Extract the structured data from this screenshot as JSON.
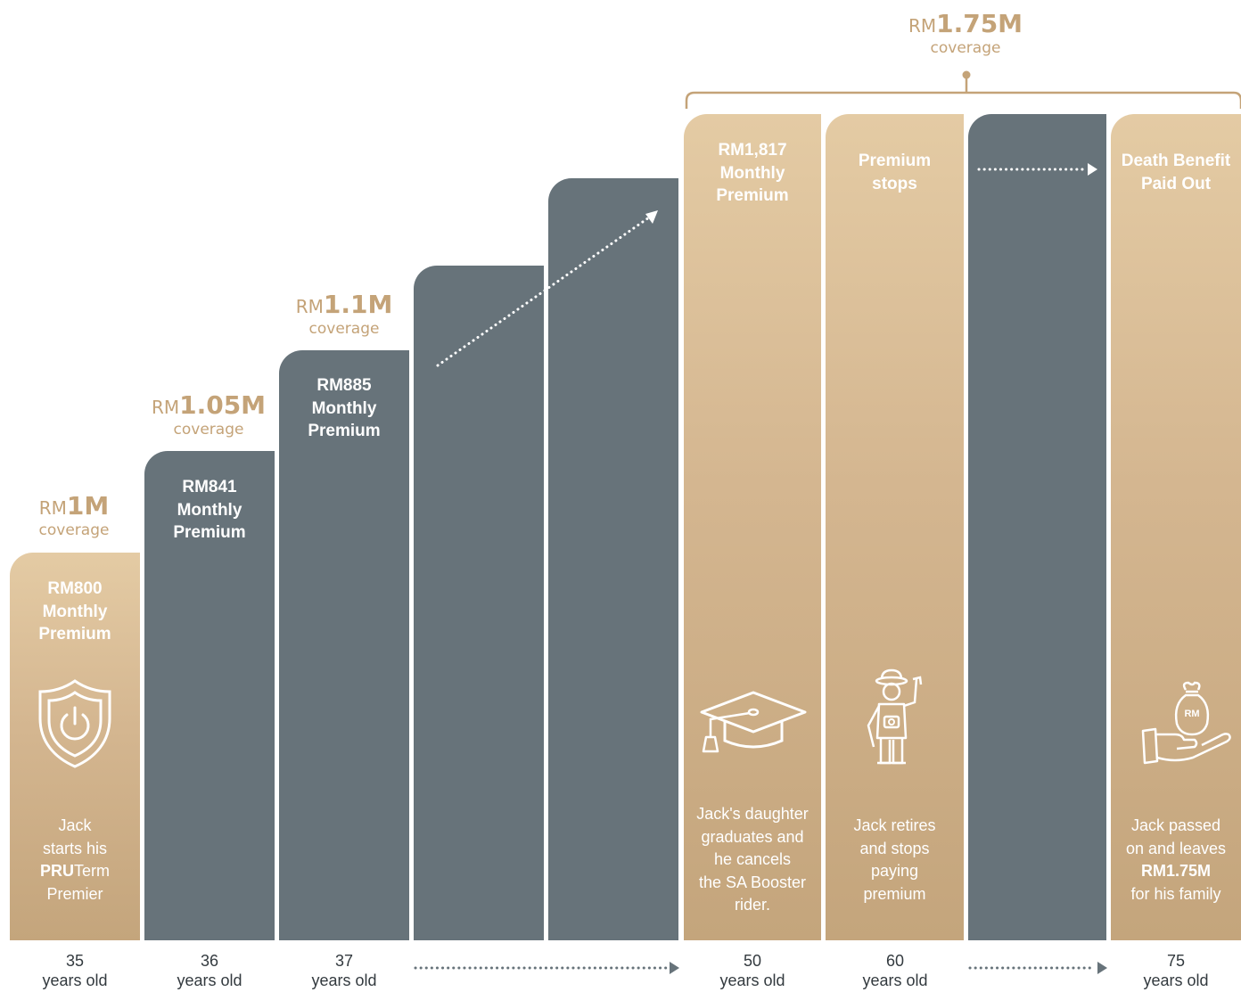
{
  "colors": {
    "gold": "#d4b690",
    "grey": "#67737a",
    "gold_text": "#c4a378",
    "age_text": "#333a3f"
  },
  "coverage": [
    {
      "currency": "RM",
      "amount": "1M",
      "label": "coverage"
    },
    {
      "currency": "RM",
      "amount": "1.05M",
      "label": "coverage"
    },
    {
      "currency": "RM",
      "amount": "1.1M",
      "label": "coverage"
    },
    {
      "currency": "RM",
      "amount": "1.75M",
      "label": "coverage"
    }
  ],
  "bars": [
    {
      "title": [
        "RM800",
        "Monthly",
        "Premium"
      ],
      "desc": [
        "Jack",
        "starts his"
      ],
      "desc_brand_bold": "PRU",
      "desc_brand_rest": "Term",
      "desc_last": "Premier",
      "icon": "shield-power-icon"
    },
    {
      "title": [
        "RM841",
        "Monthly",
        "Premium"
      ]
    },
    {
      "title": [
        "RM885",
        "Monthly",
        "Premium"
      ]
    },
    {},
    {},
    {
      "title": [
        "RM1,817",
        "Monthly",
        "Premium"
      ],
      "desc": [
        "Jack's daughter",
        "graduates and",
        "he cancels",
        "the SA Booster",
        "rider."
      ],
      "icon": "graduation-cap-icon"
    },
    {
      "title": [
        "Premium",
        "stops"
      ],
      "desc": [
        "Jack retires",
        "and stops",
        "paying",
        "premium"
      ],
      "icon": "retiree-tourist-icon"
    },
    {},
    {
      "title": [
        "Death Benefit",
        "Paid Out"
      ],
      "desc": [
        "Jack passed",
        "on and leaves"
      ],
      "desc_bold": "RM1.75M",
      "desc_last": "for his family",
      "icon": "money-bag-hand-icon",
      "icon_label": "RM"
    }
  ],
  "ages": [
    {
      "num": "35",
      "label": "years old"
    },
    {
      "num": "36",
      "label": "years old"
    },
    {
      "num": "37",
      "label": "years old"
    },
    {
      "num": "50",
      "label": "years old"
    },
    {
      "num": "60",
      "label": "years old"
    },
    {
      "num": "75",
      "label": "years old"
    }
  ]
}
